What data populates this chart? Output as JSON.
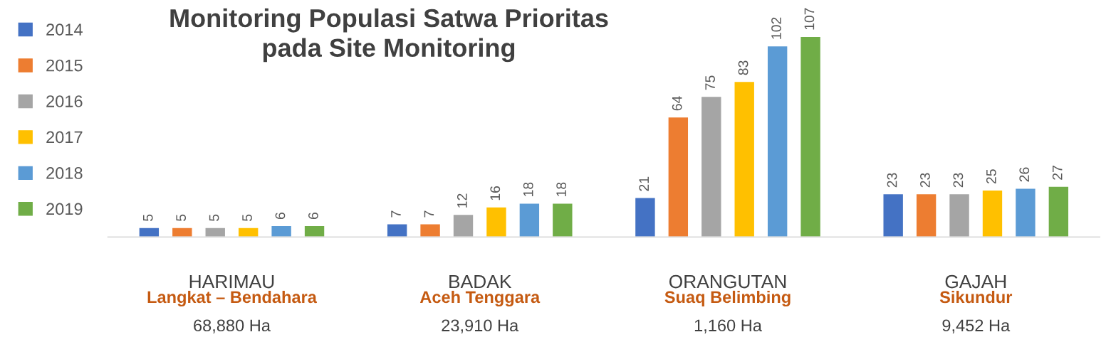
{
  "chart_data": {
    "type": "bar",
    "title": "Monitoring Populasi Satwa Prioritas\npada Site Monitoring",
    "categories": [
      "HARIMAU",
      "BADAK",
      "ORANGUTAN",
      "GAJAH"
    ],
    "series": [
      {
        "name": "2014",
        "color": "#4472c4",
        "values": [
          5,
          7,
          21,
          23
        ]
      },
      {
        "name": "2015",
        "color": "#ed7d31",
        "values": [
          5,
          7,
          64,
          23
        ]
      },
      {
        "name": "2016",
        "color": "#a5a5a5",
        "values": [
          5,
          12,
          75,
          23
        ]
      },
      {
        "name": "2017",
        "color": "#ffc000",
        "values": [
          5,
          16,
          83,
          25
        ]
      },
      {
        "name": "2018",
        "color": "#5b9bd5",
        "values": [
          6,
          18,
          102,
          26
        ]
      },
      {
        "name": "2019",
        "color": "#70ad47",
        "values": [
          6,
          18,
          107,
          27
        ]
      }
    ],
    "annotations": [
      "Langkat – Bendahara",
      "68,880 Ha",
      "Aceh Tenggara",
      "23,910 Ha",
      "Suaq Belimbing",
      "1,160 Ha",
      "Sikundur",
      "9,452 Ha"
    ],
    "data_labels": true,
    "legend": "left",
    "tick_labels": "x",
    "grid": false
  }
}
